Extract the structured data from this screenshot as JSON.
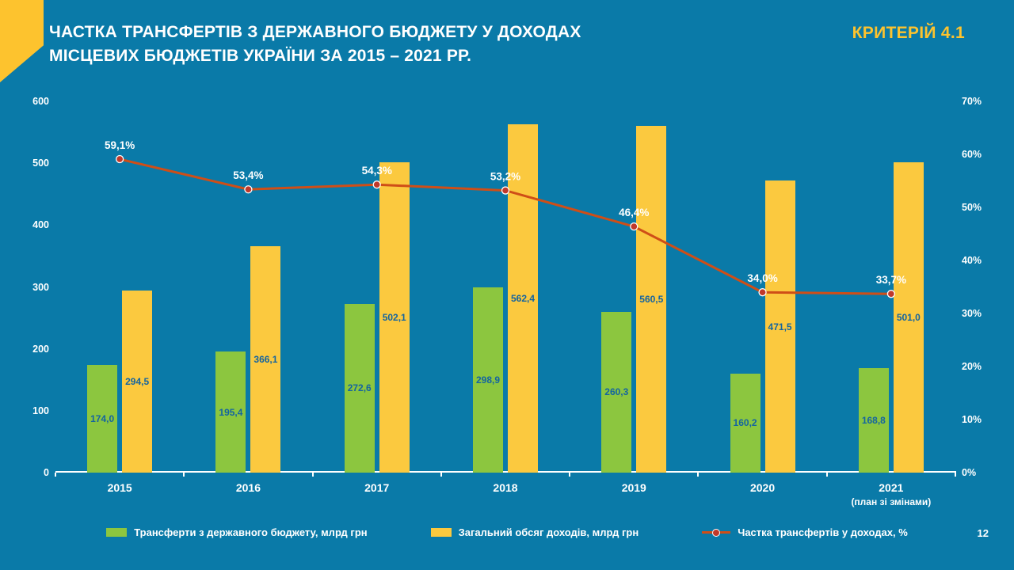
{
  "slide": {
    "title_line1": "ЧАСТКА ТРАНСФЕРТІВ З ДЕРЖАВНОГО БЮДЖЕТУ У ДОХОДАХ",
    "title_line2": "МІСЦЕВИХ БЮДЖЕТІВ УКРАЇНИ ЗА 2015 – 2021 РР.",
    "badge_label": "КРИТЕРІЙ 4.1",
    "page_number": "12"
  },
  "colors": {
    "background": "#0a7aa8",
    "bar_green": "#8cc63f",
    "bar_yellow": "#fbc93f",
    "line_orange": "#cf4e17",
    "marker_red": "#c0392b",
    "value_label_blue": "#1464a0",
    "accent_yellow": "#fdc32e",
    "text_white": "#ffffff"
  },
  "chart_data": {
    "type": "bar+line",
    "title": "Частка трансфертів з державного бюджету у доходах місцевих бюджетів України за 2015 – 2021 рр.",
    "grid": false,
    "legend_position": "bottom",
    "categories": [
      {
        "label": "2015",
        "sublabel": ""
      },
      {
        "label": "2016",
        "sublabel": ""
      },
      {
        "label": "2017",
        "sublabel": ""
      },
      {
        "label": "2018",
        "sublabel": ""
      },
      {
        "label": "2019",
        "sublabel": ""
      },
      {
        "label": "2020",
        "sublabel": ""
      },
      {
        "label": "2021",
        "sublabel": "(план зі змінами)"
      }
    ],
    "series": [
      {
        "name": "Трансферти з державного бюджету, млрд грн",
        "type": "bar",
        "axis": "left",
        "color_key": "bar_green",
        "values": [
          174.0,
          195.4,
          272.6,
          298.9,
          260.3,
          160.2,
          168.8
        ],
        "value_labels": [
          "174,0",
          "195,4",
          "272,6",
          "298,9",
          "260,3",
          "160,2",
          "168,8"
        ]
      },
      {
        "name": "Загальний обсяг доходів, млрд грн",
        "type": "bar",
        "axis": "left",
        "color_key": "bar_yellow",
        "values": [
          294.5,
          366.1,
          502.1,
          562.4,
          560.5,
          471.5,
          501.0
        ],
        "value_labels": [
          "294,5",
          "366,1",
          "502,1",
          "562,4",
          "560,5",
          "471,5",
          "501,0"
        ]
      },
      {
        "name": "Частка трансфертів у доходах, %",
        "type": "line",
        "axis": "right",
        "color_key": "line_orange",
        "values": [
          59.1,
          53.4,
          54.3,
          53.2,
          46.4,
          34.0,
          33.7
        ],
        "value_labels": [
          "59,1%",
          "53,4%",
          "54,3%",
          "53,2%",
          "46,4%",
          "34,0%",
          "33,7%"
        ]
      }
    ],
    "left_axis": {
      "min": 0,
      "max": 600,
      "tick_labels": [
        "0",
        "100",
        "200",
        "300",
        "400",
        "500",
        "600"
      ]
    },
    "right_axis": {
      "min": 0,
      "max": 70,
      "tick_labels": [
        "0%",
        "10%",
        "20%",
        "30%",
        "40%",
        "50%",
        "60%",
        "70%"
      ]
    }
  }
}
